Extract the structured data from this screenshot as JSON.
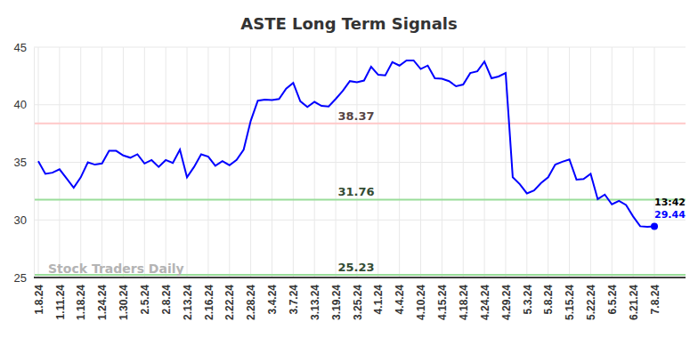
{
  "chart_data": {
    "type": "line",
    "title": "ASTE Long Term Signals",
    "categories": [
      "1.8.24",
      null,
      null,
      "1.11.24",
      null,
      null,
      "1.18.24",
      null,
      null,
      "1.24.24",
      null,
      null,
      "1.30.24",
      null,
      null,
      "2.5.24",
      null,
      null,
      "2.8.24",
      null,
      null,
      "2.13.24",
      null,
      null,
      "2.16.24",
      null,
      null,
      "2.22.24",
      null,
      null,
      "2.28.24",
      null,
      null,
      "3.4.24",
      null,
      null,
      "3.7.24",
      null,
      null,
      "3.13.24",
      null,
      null,
      "3.19.24",
      null,
      null,
      "3.25.24",
      null,
      null,
      "4.1.24",
      null,
      null,
      "4.4.24",
      null,
      null,
      "4.10.24",
      null,
      null,
      "4.15.24",
      null,
      null,
      "4.18.24",
      null,
      null,
      "4.24.24",
      null,
      null,
      "4.29.24",
      null,
      null,
      "5.3.24",
      null,
      null,
      "5.8.24",
      null,
      null,
      "5.15.24",
      null,
      null,
      "5.22.24",
      null,
      null,
      "6.5.24",
      null,
      null,
      "6.21.24",
      null,
      null,
      "7.8.24"
    ],
    "series": [
      {
        "color": "#0000ff",
        "marker": "last",
        "values": [
          35.1,
          34.0,
          34.1,
          34.4,
          33.6,
          32.8,
          33.7,
          35.0,
          34.8,
          34.9,
          36.0,
          36.0,
          35.6,
          35.4,
          35.7,
          34.9,
          35.2,
          34.6,
          35.2,
          34.95,
          36.1,
          33.7,
          34.6,
          35.7,
          35.5,
          34.7,
          35.1,
          34.75,
          35.2,
          36.1,
          38.6,
          40.35,
          40.45,
          40.4,
          40.5,
          41.4,
          41.9,
          40.3,
          39.8,
          40.25,
          39.9,
          39.85,
          40.5,
          41.2,
          42.05,
          41.95,
          42.1,
          43.3,
          42.6,
          42.55,
          43.7,
          43.4,
          43.85,
          43.85,
          43.1,
          43.4,
          42.3,
          42.25,
          42.05,
          41.6,
          41.75,
          42.75,
          42.9,
          43.75,
          42.3,
          42.45,
          42.75,
          33.7,
          33.1,
          32.3,
          32.55,
          33.2,
          33.7,
          34.8,
          35.05,
          35.25,
          33.5,
          33.55,
          34.0,
          31.8,
          32.2,
          31.35,
          31.65,
          31.3,
          30.3,
          29.45,
          29.4,
          29.44
        ]
      }
    ],
    "reference_lines": [
      {
        "value": 38.37,
        "color": "#ffc8c8"
      },
      {
        "value": 31.76,
        "color": "#99dd99"
      },
      {
        "value": 25.23,
        "color": "#99dd99"
      }
    ],
    "annotations": [
      {
        "text": "13:42"
      },
      {
        "text": "Stock Traders Daily"
      }
    ],
    "ylim": [
      25,
      45
    ],
    "yticks": [
      25,
      30,
      35,
      40,
      45
    ],
    "grid": true
  }
}
